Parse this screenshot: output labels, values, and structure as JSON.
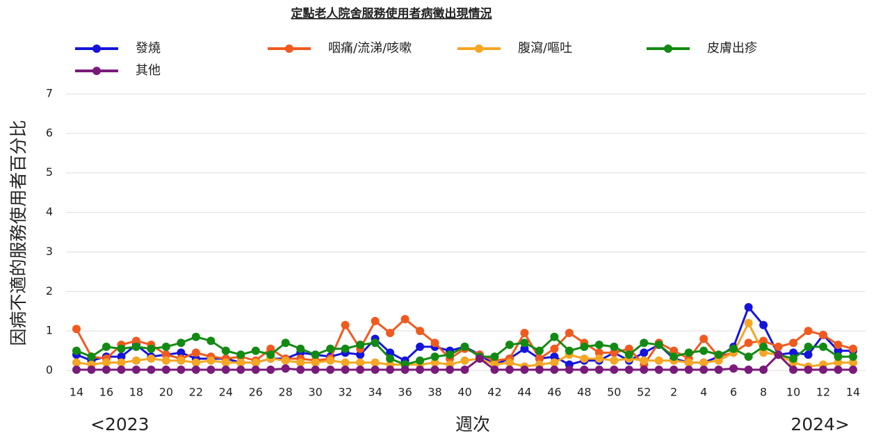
{
  "chart_data": {
    "type": "line",
    "title": "定點老人院舍服務使用者病徵出現情況",
    "y_label": "因病不適的服務使用者百分比",
    "x_label": "週次",
    "start_label": "<2023",
    "end_label": "2024>",
    "categories": [
      "14",
      null,
      "16",
      null,
      "18",
      null,
      "20",
      null,
      "22",
      null,
      "24",
      null,
      "26",
      null,
      "28",
      null,
      "30",
      null,
      "32",
      null,
      "34",
      null,
      "36",
      null,
      "38",
      null,
      "40",
      null,
      "42",
      null,
      "44",
      null,
      "46",
      null,
      "48",
      null,
      "50",
      null,
      "52",
      null,
      "2",
      null,
      "4",
      null,
      "6",
      null,
      "8",
      null,
      "10",
      null,
      "12",
      null,
      "14"
    ],
    "series": [
      {
        "name": "發燒",
        "color": "#1414dc",
        "values": [
          0.4,
          0.25,
          0.35,
          0.35,
          0.65,
          0.35,
          0.4,
          0.45,
          0.3,
          0.3,
          0.3,
          0.2,
          0.2,
          0.3,
          0.3,
          0.45,
          0.4,
          0.35,
          0.45,
          0.4,
          0.8,
          0.45,
          0.25,
          0.6,
          0.6,
          0.5,
          0.6,
          0.4,
          0.15,
          0.3,
          0.55,
          0.3,
          0.35,
          0.15,
          0.25,
          0.25,
          0.45,
          0.25,
          0.45,
          0.65,
          0.3,
          0.2,
          0.2,
          0.35,
          0.6,
          1.6,
          1.15,
          0.4,
          0.45,
          0.4,
          0.9,
          0.5,
          0.5
        ]
      },
      {
        "name": "咽痛/流涕/咳嗽",
        "color": "#f05a1e",
        "values": [
          1.05,
          0.35,
          0.3,
          0.65,
          0.75,
          0.65,
          0.4,
          0.3,
          0.45,
          0.35,
          0.3,
          0.35,
          0.25,
          0.55,
          0.3,
          0.3,
          0.25,
          0.3,
          1.15,
          0.55,
          1.25,
          0.95,
          1.3,
          1.0,
          0.7,
          0.3,
          0.55,
          0.4,
          0.25,
          0.3,
          0.95,
          0.3,
          0.55,
          0.95,
          0.7,
          0.45,
          0.45,
          0.55,
          0.15,
          0.7,
          0.5,
          0.3,
          0.8,
          0.35,
          0.45,
          0.7,
          0.75,
          0.6,
          0.7,
          1.0,
          0.9,
          0.65,
          0.55
        ]
      },
      {
        "name": "腹瀉/嘔吐",
        "color": "#f5a623",
        "values": [
          0.2,
          0.15,
          0.2,
          0.2,
          0.25,
          0.3,
          0.25,
          0.25,
          0.2,
          0.25,
          0.2,
          0.2,
          0.2,
          0.3,
          0.25,
          0.2,
          0.2,
          0.25,
          0.2,
          0.2,
          0.2,
          0.15,
          0.15,
          0.15,
          0.2,
          0.15,
          0.25,
          0.3,
          0.15,
          0.2,
          0.1,
          0.15,
          0.2,
          0.4,
          0.3,
          0.3,
          0.25,
          0.3,
          0.25,
          0.25,
          0.25,
          0.2,
          0.2,
          0.25,
          0.45,
          1.2,
          0.45,
          0.4,
          0.2,
          0.1,
          0.15,
          0.2,
          0.2
        ]
      },
      {
        "name": "皮膚出疹",
        "color": "#138a13",
        "values": [
          0.5,
          0.35,
          0.6,
          0.55,
          0.6,
          0.55,
          0.6,
          0.7,
          0.85,
          0.75,
          0.5,
          0.4,
          0.5,
          0.4,
          0.7,
          0.55,
          0.4,
          0.55,
          0.55,
          0.65,
          0.7,
          0.3,
          0.15,
          0.25,
          0.35,
          0.4,
          0.6,
          0.35,
          0.35,
          0.65,
          0.7,
          0.5,
          0.85,
          0.5,
          0.6,
          0.65,
          0.6,
          0.4,
          0.7,
          0.65,
          0.35,
          0.45,
          0.5,
          0.4,
          0.55,
          0.35,
          0.6,
          0.4,
          0.3,
          0.6,
          0.6,
          0.35,
          0.35
        ]
      },
      {
        "name": "其他",
        "color": "#7a1a7a",
        "values": [
          0.02,
          0.02,
          0.02,
          0.02,
          0.02,
          0.02,
          0.02,
          0.02,
          0.02,
          0.02,
          0.02,
          0.02,
          0.02,
          0.02,
          0.05,
          0.02,
          0.02,
          0.02,
          0.02,
          0.02,
          0.02,
          0.02,
          0.02,
          0.02,
          0.02,
          0.02,
          0.02,
          0.3,
          0.02,
          0.02,
          0.02,
          0.02,
          0.02,
          0.02,
          0.02,
          0.02,
          0.02,
          0.02,
          0.02,
          0.02,
          0.02,
          0.02,
          0.02,
          0.02,
          0.05,
          0.02,
          0.02,
          0.4,
          0.02,
          0.02,
          0.02,
          0.02,
          0.02
        ]
      }
    ],
    "ylim": [
      0,
      7
    ],
    "yticks": [
      0,
      1,
      2,
      3,
      4,
      5,
      6,
      7
    ],
    "grid": true
  }
}
